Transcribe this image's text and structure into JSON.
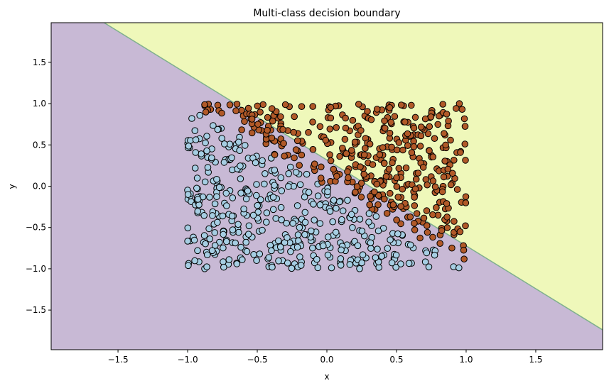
{
  "chart_data": {
    "type": "scatter",
    "title": "Multi-class decision boundary",
    "xlabel": "x",
    "ylabel": "y",
    "xlim": [
      -1.98,
      1.98
    ],
    "ylim": [
      -1.98,
      1.98
    ],
    "xticks": [
      -1.5,
      -1.0,
      -0.5,
      0.0,
      0.5,
      1.0,
      1.5
    ],
    "xtick_labels": [
      "−1.5",
      "−1.0",
      "−0.5",
      "0.0",
      "0.5",
      "1.0",
      "1.5"
    ],
    "yticks": [
      -1.5,
      -1.0,
      -0.5,
      0.0,
      0.5,
      1.0,
      1.5
    ],
    "ytick_labels": [
      "−1.5",
      "−1.0",
      "−0.5",
      "0.0",
      "0.5",
      "1.0",
      "1.5"
    ],
    "grid": false,
    "legend": "none",
    "decision_boundary": {
      "line": {
        "x": [
          -1.6,
          1.98
        ],
        "y": [
          1.98,
          -1.74
        ]
      },
      "regions": [
        {
          "side": "upper-right",
          "color": "#eff8ba"
        },
        {
          "side": "lower-left",
          "color": "#c8b9d5"
        }
      ],
      "boundary_color": "#7fb08e"
    },
    "classes": [
      {
        "color": "#a6cee3",
        "edge": "#000000",
        "region": "lower-left"
      },
      {
        "color": "#b15928",
        "edge": "#000000",
        "region": "upper-right"
      }
    ],
    "points": {
      "count": 800,
      "x_range": [
        -1.0,
        1.0
      ],
      "y_range": [
        -1.0,
        1.0
      ],
      "label_rule": "x + y > 0"
    }
  }
}
